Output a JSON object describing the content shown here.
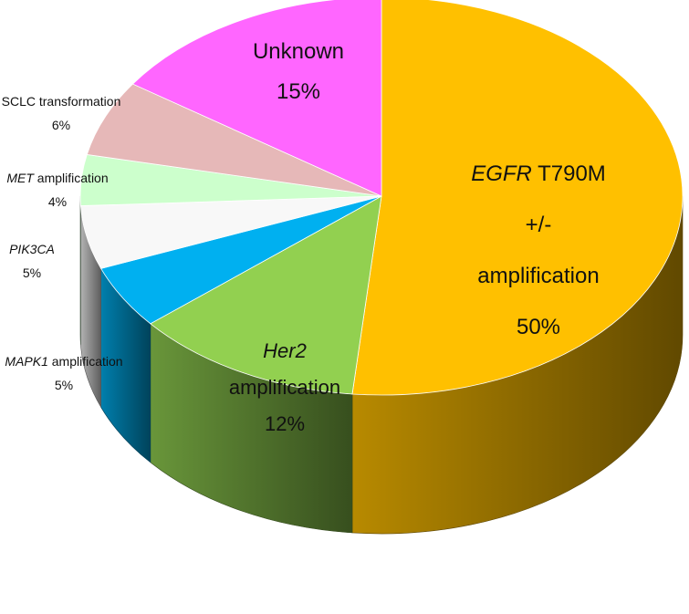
{
  "chart_data": {
    "type": "pie",
    "title": "",
    "three_d": true,
    "start_angle": "12 o'clock, clockwise",
    "slices": [
      {
        "name": "EGFR T790M +/- amplification",
        "value": 50,
        "value_label": "50%",
        "color": "#FFC000",
        "label_lines": [
          {
            "parts": [
              {
                "text": "EGFR",
                "italic": true
              },
              {
                "text": " T790M",
                "italic": false
              }
            ]
          },
          {
            "parts": [
              {
                "text": "+/-",
                "italic": false
              }
            ]
          },
          {
            "parts": [
              {
                "text": "amplification",
                "italic": false
              }
            ]
          }
        ]
      },
      {
        "name": "Her2 amplification",
        "value": 12,
        "value_label": "12%",
        "color": "#92D050",
        "label_lines": [
          {
            "parts": [
              {
                "text": "Her2",
                "italic": true
              }
            ]
          },
          {
            "parts": [
              {
                "text": "amplification",
                "italic": false
              }
            ]
          }
        ]
      },
      {
        "name": "MAPK1 amplification",
        "value": 5,
        "value_label": "5%",
        "color": "#00B0F0",
        "label_lines": [
          {
            "parts": [
              {
                "text": "MAPK1",
                "italic": true
              },
              {
                "text": " amplification",
                "italic": false
              }
            ]
          }
        ]
      },
      {
        "name": "PIK3CA",
        "value": 5,
        "value_label": "5%",
        "color": "#F8F8F8",
        "label_lines": [
          {
            "parts": [
              {
                "text": "PIK3CA",
                "italic": true
              }
            ]
          }
        ]
      },
      {
        "name": "MET amplification",
        "value": 4,
        "value_label": "4%",
        "color": "#CCFFCC",
        "label_lines": [
          {
            "parts": [
              {
                "text": "MET",
                "italic": true
              },
              {
                "text": " amplification",
                "italic": false
              }
            ]
          }
        ]
      },
      {
        "name": "SCLC transformation",
        "value": 6,
        "value_label": "6%",
        "color": "#E6B8B8",
        "label_lines": [
          {
            "parts": [
              {
                "text": "SCLC transformation",
                "italic": false
              }
            ]
          }
        ]
      },
      {
        "name": "Unknown",
        "value": 15,
        "value_label": "15%",
        "color": "#FF66FF",
        "label_lines": [
          {
            "parts": [
              {
                "text": "Unknown",
                "italic": false
              }
            ]
          }
        ]
      }
    ]
  }
}
